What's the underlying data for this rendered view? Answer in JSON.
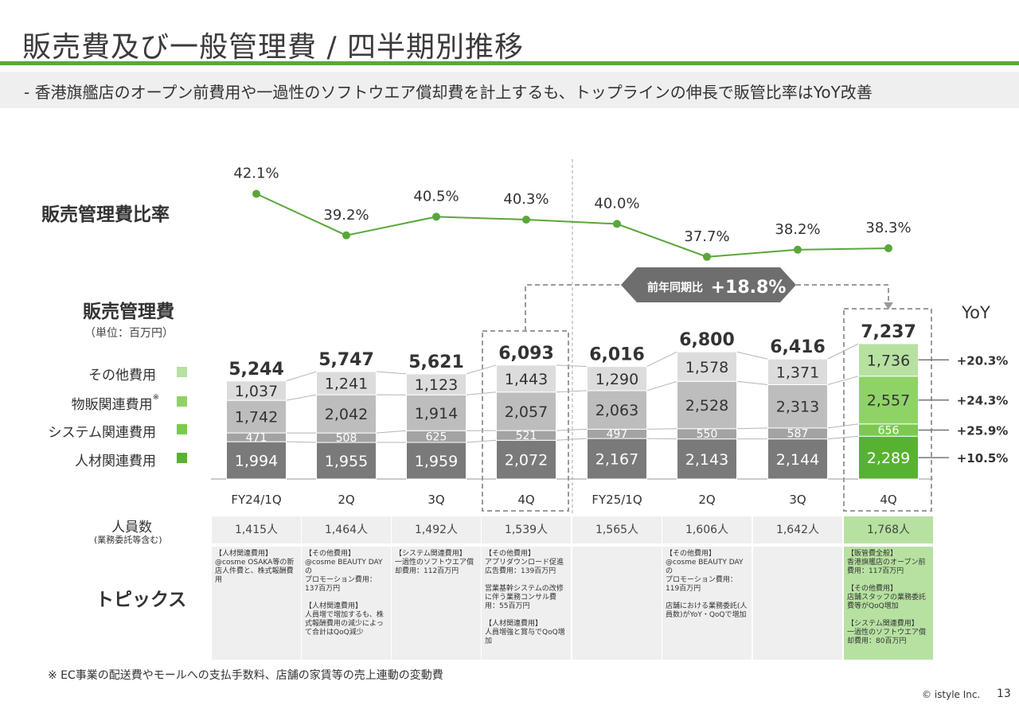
{
  "title": "販売費及び一般管理費 / 四半期別推移",
  "subtitle": "-  香港旗艦店のオープン前費用や一過性のソフトウエア償却費を計上するも、トップラインの伸長で販管比率はYoY改善",
  "ratio_label": "販売管理費比率",
  "sga_label": "販売管理費",
  "unit_label": "（単位：百万円）",
  "yoy_header": "YoY",
  "yoy_callout": {
    "prefix": "前年同期比",
    "value": "+18.8%"
  },
  "headcount_label": "人員数",
  "headcount_sub": "(業務委託等含む)",
  "topics_label": "トピックス",
  "footnote": "※ EC事業の配送費やモールへの支払手数料、店舗の家賃等の売上連動の変動費",
  "copyright": "© istyle Inc.",
  "page_number": "13",
  "colors": {
    "accent_green": "#5aa63a",
    "cat_other": "#b7e1a1",
    "cat_sales": "#8fd367",
    "cat_system": "#7bca4f",
    "cat_hr": "#58b232",
    "gray_other": "#dcdcdc",
    "gray_sales": "#bdbdbd",
    "gray_system": "#a3a3a3",
    "gray_hr": "#7a7a7a"
  },
  "chart_data": {
    "type": "bar",
    "stacked": true,
    "categories": [
      "FY24/1Q",
      "2Q",
      "3Q",
      "4Q",
      "FY25/1Q",
      "2Q",
      "3Q",
      "4Q"
    ],
    "series": [
      {
        "name": "人材関連費用",
        "values": [
          1994,
          1955,
          1959,
          2072,
          2167,
          2143,
          2144,
          2289
        ],
        "yoy": "+10.5%"
      },
      {
        "name": "システム関連費用",
        "values": [
          471,
          508,
          625,
          521,
          497,
          550,
          587,
          656
        ],
        "yoy": "+25.9%"
      },
      {
        "name": "物販関連費用",
        "legend_mark": "※",
        "values": [
          1742,
          2042,
          1914,
          2057,
          2063,
          2528,
          2313,
          2557
        ],
        "yoy": "+24.3%"
      },
      {
        "name": "その他費用",
        "values": [
          1037,
          1241,
          1123,
          1443,
          1290,
          1578,
          1371,
          1736
        ],
        "yoy": "+20.3%"
      }
    ],
    "totals": [
      5244,
      5747,
      5621,
      6093,
      6016,
      6800,
      6416,
      7237
    ],
    "ratio_line": {
      "values": [
        42.1,
        39.2,
        40.5,
        40.3,
        40.0,
        37.7,
        38.2,
        38.3
      ],
      "labels": [
        "42.1%",
        "39.2%",
        "40.5%",
        "40.3%",
        "40.0%",
        "37.7%",
        "38.2%",
        "38.3%"
      ]
    }
  },
  "headcount": [
    "1,415人",
    "1,464人",
    "1,492人",
    "1,539人",
    "1,565人",
    "1,606人",
    "1,642人",
    "1,768人"
  ],
  "topics": [
    "【人材関連費用】\n@cosme OSAKA等の新店人件費と、株式報酬費用",
    "【その他費用】\n@cosme BEAUTY DAYの\nプロモーション費用：137百万円\n\n【人材関連費用】\n人員増で増加するも、株式報酬費用の減少によって合計はQoQ減少",
    "【システム関連費用】\n一過性のソフトウエア償却費用：112百万円",
    "【その他費用】\nアプリダウンロード促進広告費用：139百万円\n\n営業基幹システムの改修に伴う業務コンサル費用：55百万円\n\n【人材関連費用】\n人員増強と賞与でQoQ増加",
    "",
    "【その他費用】\n@cosme BEAUTY DAYの\nプロモーション費用：119百万円\n\n店舗における業務委託(人員数)がYoY・QoQで増加",
    "",
    "【販管費全般】\n香港旗艦店のオープン前費用：117百万円\n\n【その他費用】\n店舗スタッフの業務委託費等がQoQ増加\n\n【システム関連費用】\n一過性のソフトウエア償却費用：80百万円"
  ]
}
